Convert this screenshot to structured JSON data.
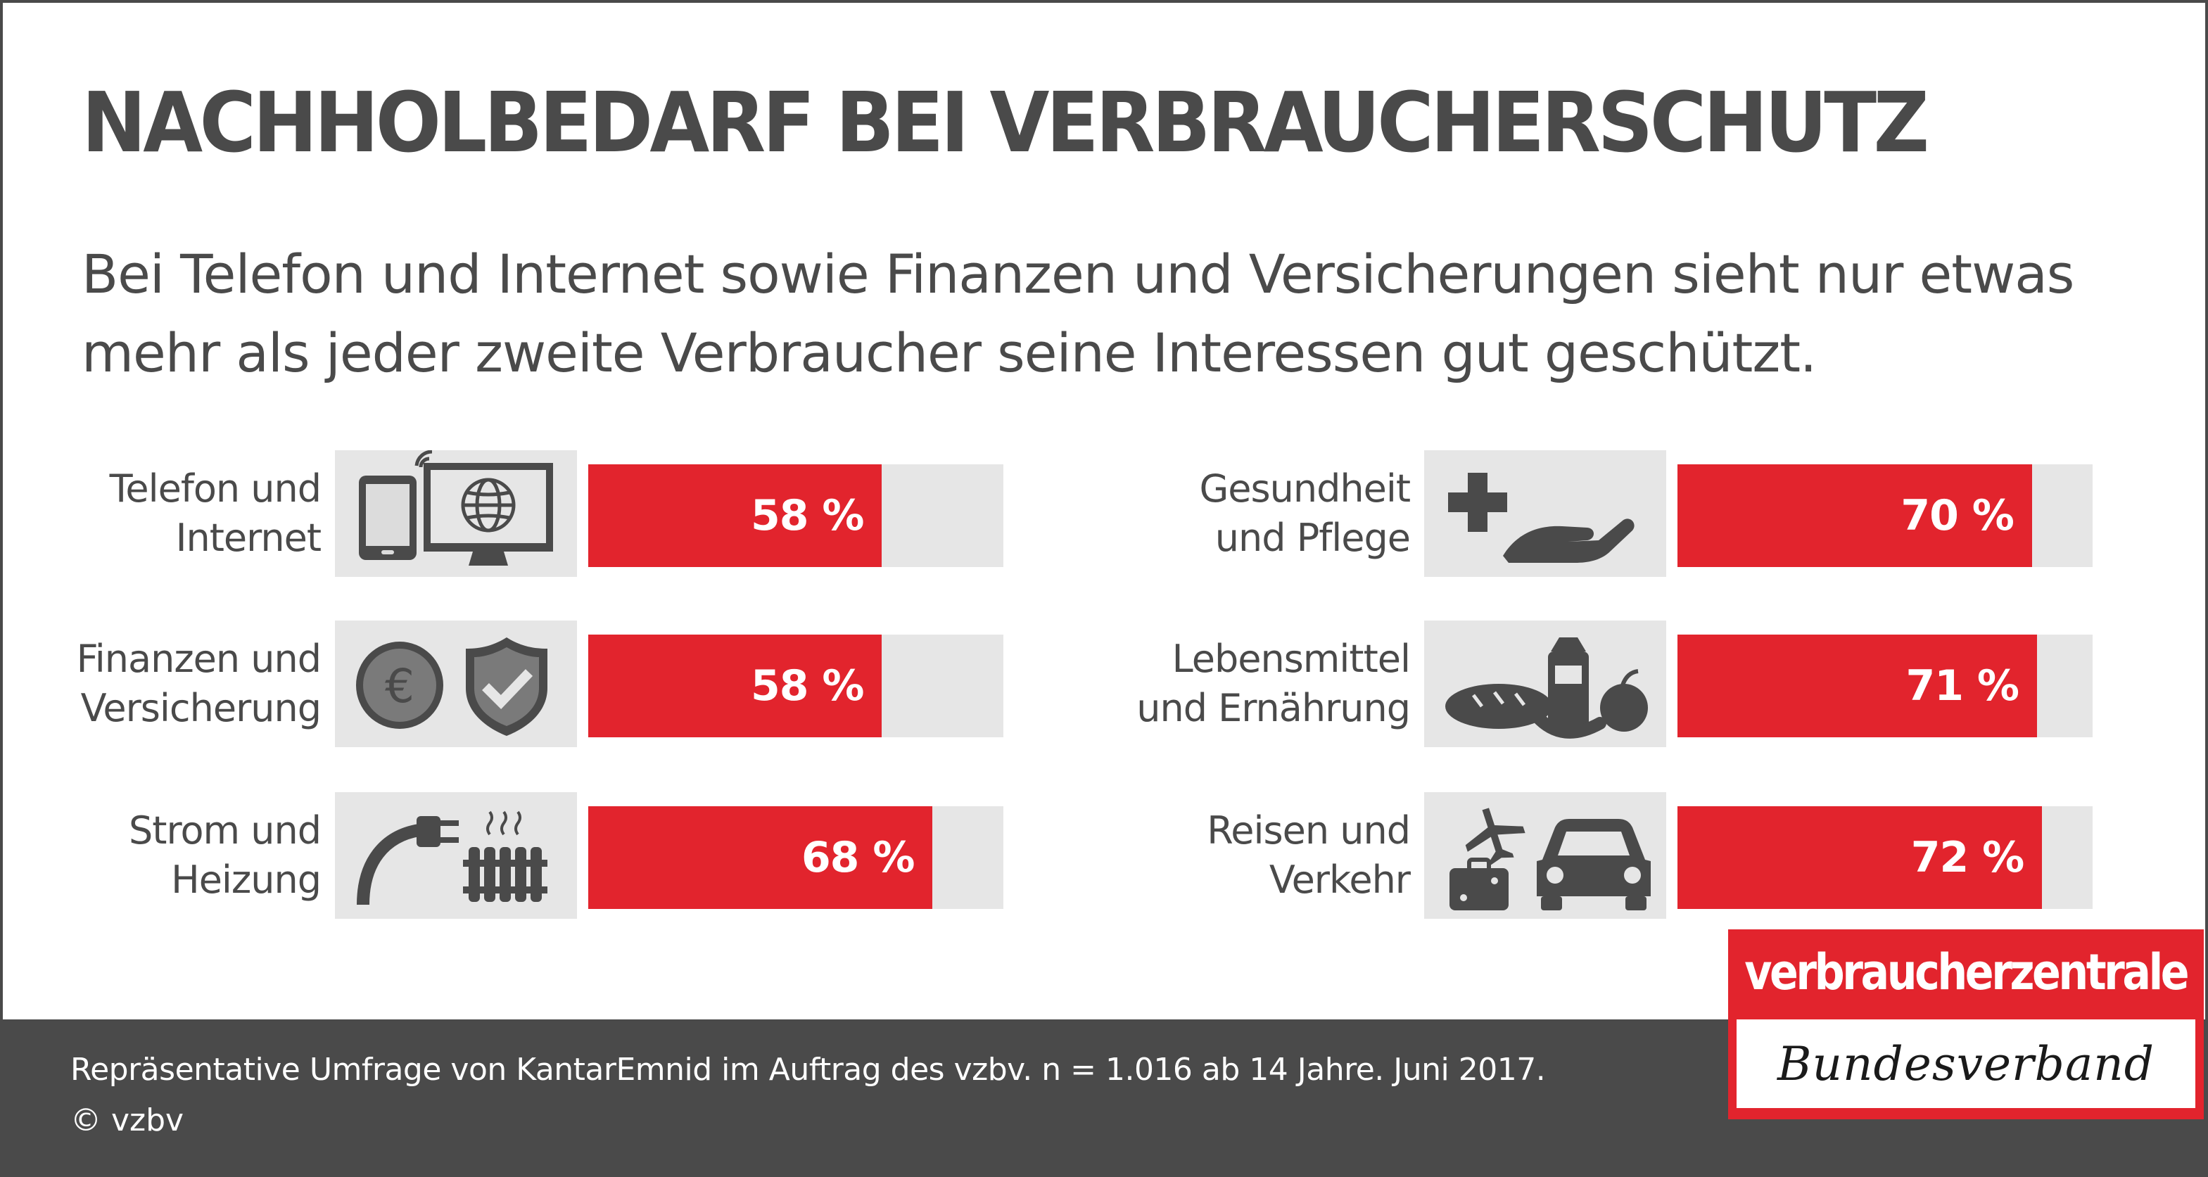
{
  "title": "NACHHOLBEDARF BEI VERBRAUCHERSCHUTZ",
  "subtitle": "Bei Telefon und Internet sowie Finanzen und Versicherungen sieht nur etwas mehr als jeder zweite Verbraucher seine Interessen gut geschützt.",
  "footnote": "Repräsentative Umfrage von KantarEmnid im Auftrag des vzbv. n = 1.016 ab 14 Jahre. Juni 2017.",
  "copyright": "© vzbv",
  "logo": {
    "top_text": "verbraucherzentrale",
    "bottom_text": "Bundesverband"
  },
  "colors": {
    "bar": "#e2242d",
    "track": "#e6e6e6",
    "text": "#4a4a4a",
    "footer": "#4a4a4a"
  },
  "chart_data": {
    "type": "bar",
    "orientation": "horizontal",
    "unit": "%",
    "xlim": [
      0,
      100
    ],
    "categories": [
      "Telefon und Internet",
      "Finanzen und Versicherung",
      "Strom und Heizung",
      "Gesundheit und Pflege",
      "Lebensmittel und Ernährung",
      "Reisen und Verkehr"
    ],
    "values": [
      58,
      58,
      68,
      70,
      71,
      72
    ],
    "items": [
      {
        "label_lines": [
          "Telefon und",
          "Internet"
        ],
        "value": 58,
        "value_label": "58 %",
        "icon": "tablet-monitor-icon"
      },
      {
        "label_lines": [
          "Finanzen und",
          "Versicherung"
        ],
        "value": 58,
        "value_label": "58 %",
        "icon": "euro-shield-icon"
      },
      {
        "label_lines": [
          "Strom und",
          "Heizung"
        ],
        "value": 68,
        "value_label": "68 %",
        "icon": "plug-radiator-icon"
      },
      {
        "label_lines": [
          "Gesundheit",
          "und Pflege"
        ],
        "value": 70,
        "value_label": "70 %",
        "icon": "cross-hand-icon"
      },
      {
        "label_lines": [
          "Lebensmittel",
          "und Ernährung"
        ],
        "value": 71,
        "value_label": "71 %",
        "icon": "food-icon"
      },
      {
        "label_lines": [
          "Reisen und",
          "Verkehr"
        ],
        "value": 72,
        "value_label": "72 %",
        "icon": "plane-car-suitcase-icon"
      }
    ]
  }
}
